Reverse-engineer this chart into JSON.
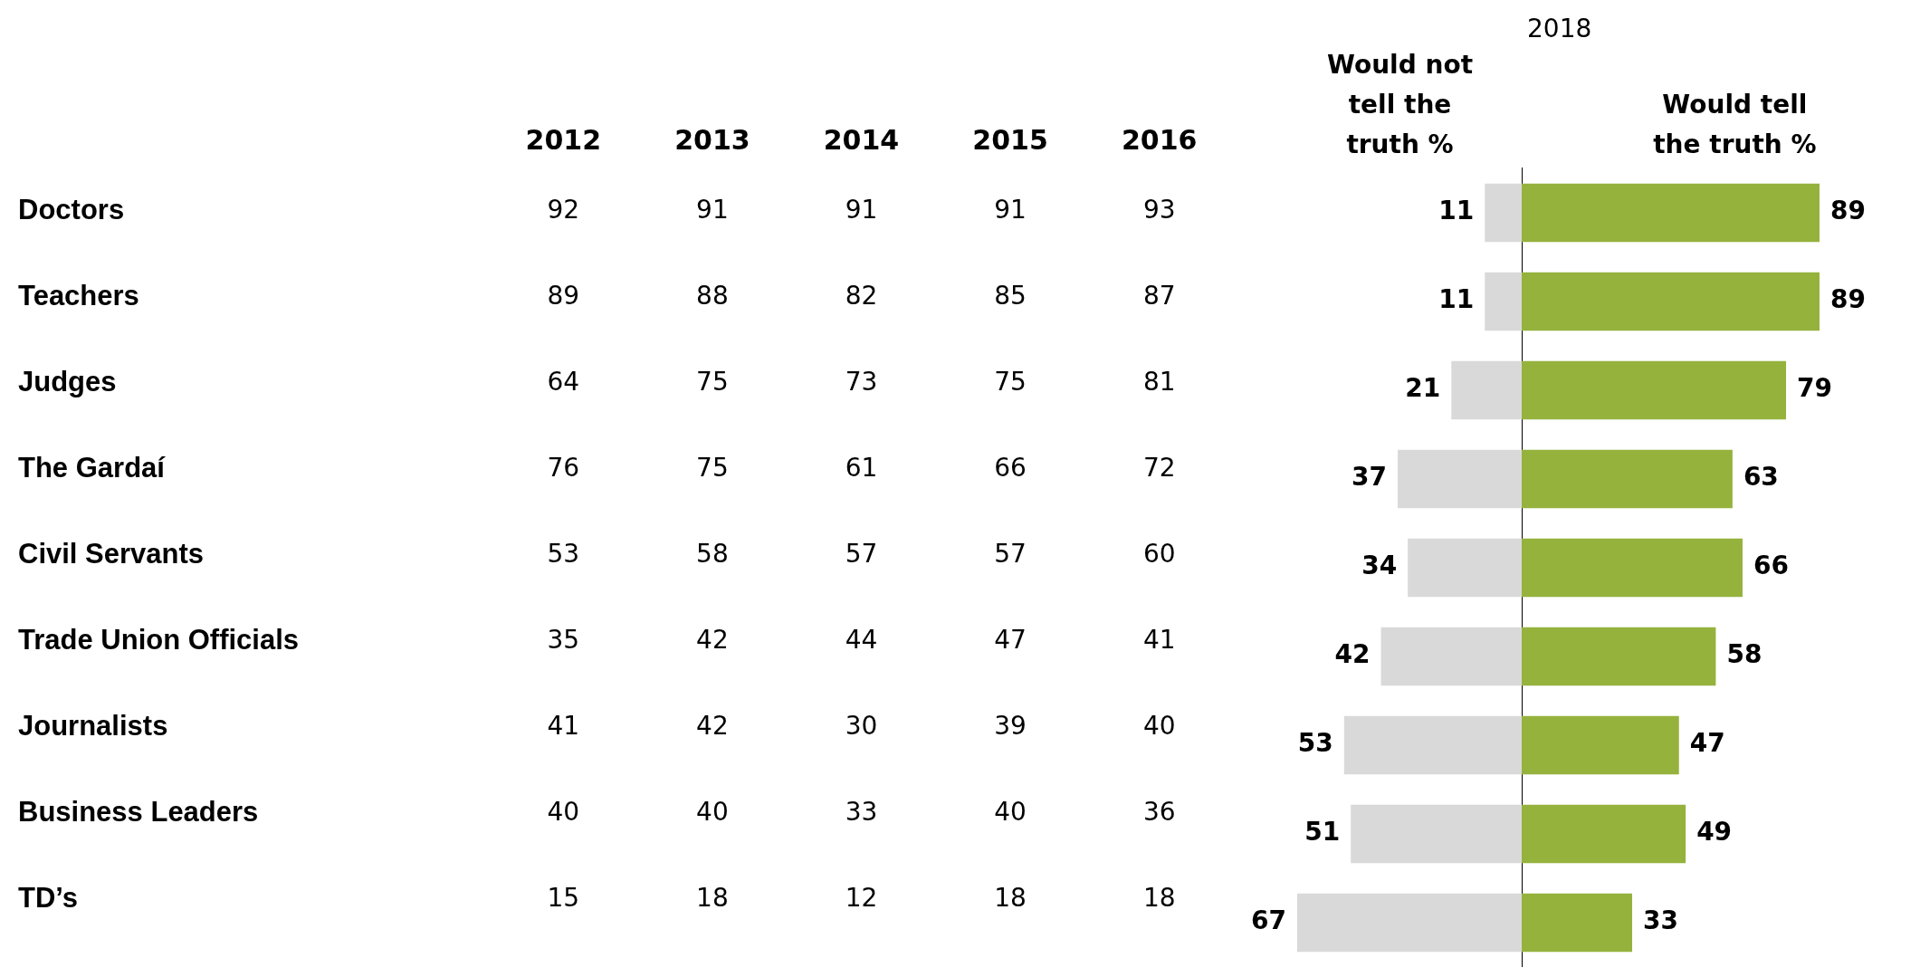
{
  "chart_data": [
    {
      "type": "heatmap",
      "categories": [
        "2012",
        "2013",
        "2014",
        "2015",
        "2016"
      ],
      "y_categories": [
        "Doctors",
        "Teachers",
        "Judges",
        "The Gardaí",
        "Civil Servants",
        "Trade Union Officials",
        "Journalists",
        "Business Leaders",
        "TD’s"
      ],
      "cells": [
        [
          92,
          91,
          91,
          91,
          93
        ],
        [
          89,
          88,
          82,
          85,
          87
        ],
        [
          64,
          75,
          73,
          75,
          81
        ],
        [
          76,
          75,
          61,
          66,
          72
        ],
        [
          53,
          58,
          57,
          57,
          60
        ],
        [
          35,
          42,
          44,
          47,
          41
        ],
        [
          41,
          42,
          30,
          39,
          40
        ],
        [
          40,
          40,
          33,
          40,
          36
        ],
        [
          15,
          18,
          12,
          18,
          18
        ]
      ],
      "data_labels": true,
      "grid": false,
      "legend": false
    },
    {
      "type": "bar",
      "orientation": "horizontal",
      "categories": [
        null,
        null,
        null,
        null,
        null,
        null,
        null,
        null,
        null
      ],
      "series": [
        {
          "name": "Would not tell the truth %",
          "color": "#d9d9d9",
          "values": [
            11,
            11,
            21,
            37,
            34,
            42,
            53,
            51,
            67
          ]
        }
      ],
      "data_labels": true,
      "tick_labels": false,
      "grid": false,
      "legend": false
    },
    {
      "type": "bar",
      "title": "2018",
      "orientation": "horizontal",
      "categories": [
        null,
        null,
        null,
        null,
        null,
        null,
        null,
        null,
        null
      ],
      "series": [
        {
          "name": "Would tell the truth %",
          "color": "#95b23d",
          "values": [
            89,
            89,
            79,
            63,
            66,
            58,
            47,
            49,
            33
          ]
        }
      ],
      "data_labels": true,
      "tick_labels": false,
      "grid": false,
      "legend": false
    }
  ]
}
